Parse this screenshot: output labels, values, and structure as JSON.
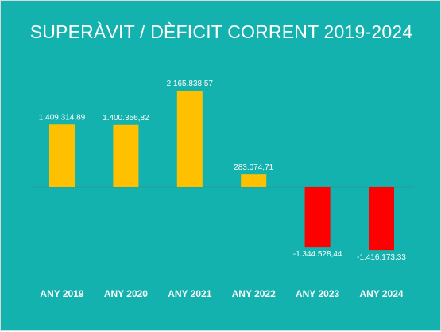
{
  "chart_data": {
    "type": "bar",
    "title": "SUPERÀVIT / DÈFICIT CORRENT 2019-2024",
    "xlabel": "",
    "ylabel": "",
    "categories": [
      "ANY 2019",
      "ANY 2020",
      "ANY 2021",
      "ANY 2022",
      "ANY 2023",
      "ANY 2024"
    ],
    "values": [
      1409314.89,
      1400356.82,
      2165838.57,
      283074.71,
      -1344528.44,
      -1416173.33
    ],
    "value_labels": [
      "1.409.314,89",
      "1.400.356,82",
      "2.165.838,57",
      "283.074,71",
      "-1.344.528,44",
      "-1.416.173,33"
    ],
    "grid": false,
    "legend": "none",
    "colors": {
      "background": "#13b2ae",
      "positive": "#ffc000",
      "negative": "#ff0000",
      "baseline": "#2a9c98",
      "text": "#ffffff"
    }
  }
}
